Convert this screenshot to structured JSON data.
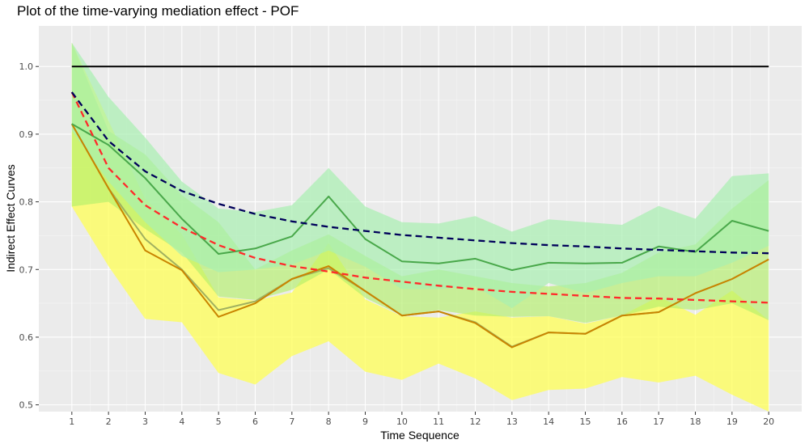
{
  "chart_data": {
    "type": "line",
    "title": "Plot of the time-varying mediation effect - POF",
    "xlabel": "Time Sequence",
    "ylabel": "Indirect Effect Curves",
    "x": [
      1,
      2,
      3,
      4,
      5,
      6,
      7,
      8,
      9,
      10,
      11,
      12,
      13,
      14,
      15,
      16,
      17,
      18,
      19,
      20
    ],
    "x_ticks": [
      "1",
      "2",
      "3",
      "4",
      "5",
      "6",
      "7",
      "8",
      "9",
      "10",
      "11",
      "12",
      "13",
      "14",
      "15",
      "16",
      "17",
      "18",
      "19",
      "20"
    ],
    "y_ticks": [
      "0.5",
      "0.6",
      "0.7",
      "0.8",
      "0.9",
      "1.0"
    ],
    "xlim": [
      0.1,
      20.9
    ],
    "ylim": [
      0.49,
      1.06
    ],
    "grid": true,
    "background": "#ebebeb",
    "bands": [
      {
        "color": "#ffff55",
        "opacity": 0.75,
        "lower": [
          0.793,
          0.705,
          0.627,
          0.622,
          0.547,
          0.53,
          0.572,
          0.594,
          0.549,
          0.537,
          0.561,
          0.539,
          0.507,
          0.522,
          0.524,
          0.541,
          0.533,
          0.543,
          0.515,
          0.49
        ],
        "upper": [
          1.035,
          0.92,
          0.804,
          0.752,
          0.659,
          0.654,
          0.666,
          0.739,
          0.656,
          0.631,
          0.629,
          0.638,
          0.629,
          0.631,
          0.62,
          0.632,
          0.66,
          0.633,
          0.669,
          0.625
        ]
      },
      {
        "color": "#b3f06a",
        "opacity": 0.65,
        "lower": [
          0.793,
          0.8,
          0.76,
          0.725,
          0.66,
          0.655,
          0.67,
          0.7,
          0.658,
          0.632,
          0.64,
          0.632,
          0.63,
          0.631,
          0.621,
          0.632,
          0.645,
          0.64,
          0.65,
          0.625
        ],
        "upper": [
          1.035,
          0.905,
          0.87,
          0.81,
          0.77,
          0.7,
          0.728,
          0.752,
          0.72,
          0.69,
          0.7,
          0.69,
          0.68,
          0.675,
          0.68,
          0.695,
          0.725,
          0.737,
          0.79,
          0.832
        ]
      },
      {
        "color": "#a8f0b0",
        "opacity": 0.7,
        "lower": [
          0.905,
          0.83,
          0.77,
          0.72,
          0.696,
          0.7,
          0.707,
          0.728,
          0.704,
          0.671,
          0.671,
          0.675,
          0.643,
          0.68,
          0.665,
          0.68,
          0.69,
          0.69,
          0.71,
          0.735
        ],
        "upper": [
          1.035,
          0.955,
          0.895,
          0.83,
          0.79,
          0.785,
          0.795,
          0.85,
          0.793,
          0.77,
          0.768,
          0.779,
          0.756,
          0.774,
          0.77,
          0.766,
          0.794,
          0.775,
          0.838,
          0.842
        ]
      }
    ],
    "series": [
      {
        "color": "#a0b060",
        "style": "solid",
        "values": [
          0.915,
          0.82,
          0.745,
          0.7,
          0.64,
          0.653,
          0.686,
          0.702,
          0.668,
          0.632,
          0.638,
          0.622,
          0.586,
          0.607,
          0.605,
          0.632,
          0.637,
          0.665,
          0.686,
          0.715
        ]
      },
      {
        "color": "#c98400",
        "style": "solid",
        "values": [
          0.915,
          0.82,
          0.728,
          0.699,
          0.63,
          0.65,
          0.686,
          0.705,
          0.668,
          0.632,
          0.638,
          0.621,
          0.585,
          0.607,
          0.605,
          0.632,
          0.637,
          0.665,
          0.686,
          0.715
        ]
      },
      {
        "color": "#49a84a",
        "style": "solid",
        "values": [
          0.915,
          0.884,
          0.835,
          0.775,
          0.723,
          0.731,
          0.749,
          0.808,
          0.745,
          0.712,
          0.709,
          0.716,
          0.699,
          0.71,
          0.709,
          0.71,
          0.734,
          0.726,
          0.772,
          0.757
        ]
      },
      {
        "color": "#ff2a2a",
        "style": "dashed",
        "values": [
          0.962,
          0.85,
          0.795,
          0.762,
          0.736,
          0.717,
          0.705,
          0.697,
          0.688,
          0.682,
          0.676,
          0.671,
          0.667,
          0.664,
          0.661,
          0.658,
          0.657,
          0.655,
          0.653,
          0.651
        ]
      },
      {
        "color": "#00005a",
        "style": "dashed",
        "values": [
          0.962,
          0.89,
          0.845,
          0.816,
          0.797,
          0.782,
          0.771,
          0.763,
          0.757,
          0.751,
          0.747,
          0.743,
          0.739,
          0.736,
          0.734,
          0.731,
          0.729,
          0.727,
          0.725,
          0.724
        ]
      },
      {
        "color": "#000000",
        "style": "solid",
        "values": [
          1.0,
          1.0,
          1.0,
          1.0,
          1.0,
          1.0,
          1.0,
          1.0,
          1.0,
          1.0,
          1.0,
          1.0,
          1.0,
          1.0,
          1.0,
          1.0,
          1.0,
          1.0,
          1.0,
          1.0
        ]
      }
    ]
  }
}
